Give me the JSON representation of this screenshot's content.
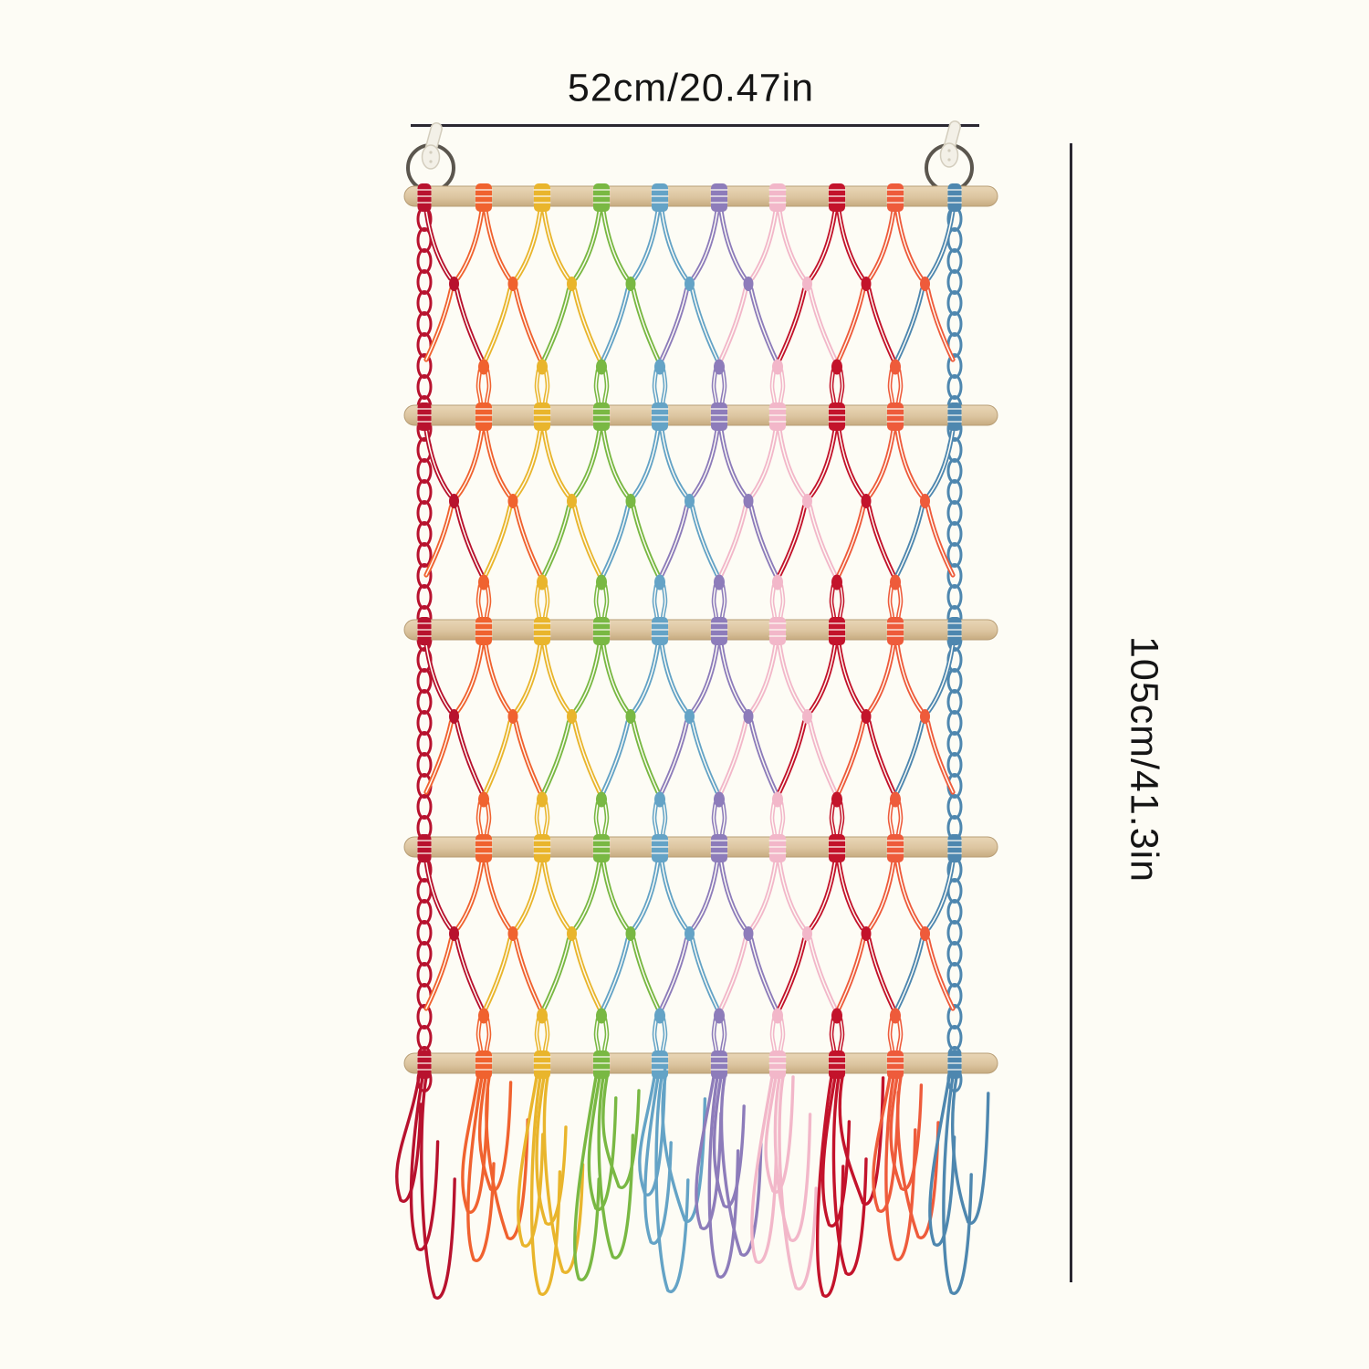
{
  "page": {
    "background": "#fdfcf5"
  },
  "annotations": {
    "width_label": "52cm/20.47in",
    "height_label": "105cm/41.3in",
    "line_color": "#2b2831",
    "text_color": "#151515"
  },
  "product": {
    "type": "rainbow macrame hanging storage net organizer",
    "rod_count": 5,
    "mesh_sections": 4,
    "hook_count": 2,
    "ring_count": 2,
    "wood_color_top": "#e9d6b6",
    "wood_color_mid": "#dcc5a0",
    "wood_color_bottom": "#c7ab80",
    "wood_edge_color": "#b89e76",
    "ring_color": "#5b564e",
    "hook_color": "#f3f0e7",
    "hook_edge_color": "#d3cdbd",
    "cord_colors": [
      {
        "name": "crimson",
        "hex": "#b8122e"
      },
      {
        "name": "orange",
        "hex": "#f0622f"
      },
      {
        "name": "yellow",
        "hex": "#e9b52c"
      },
      {
        "name": "green",
        "hex": "#79b843"
      },
      {
        "name": "sky-blue",
        "hex": "#64a3c6"
      },
      {
        "name": "purple",
        "hex": "#8d7cba"
      },
      {
        "name": "pink",
        "hex": "#f2b7c9"
      },
      {
        "name": "red",
        "hex": "#c3132b"
      },
      {
        "name": "orange-red",
        "hex": "#ee5b3b"
      },
      {
        "name": "steel-blue",
        "hex": "#4e87af"
      }
    ]
  }
}
